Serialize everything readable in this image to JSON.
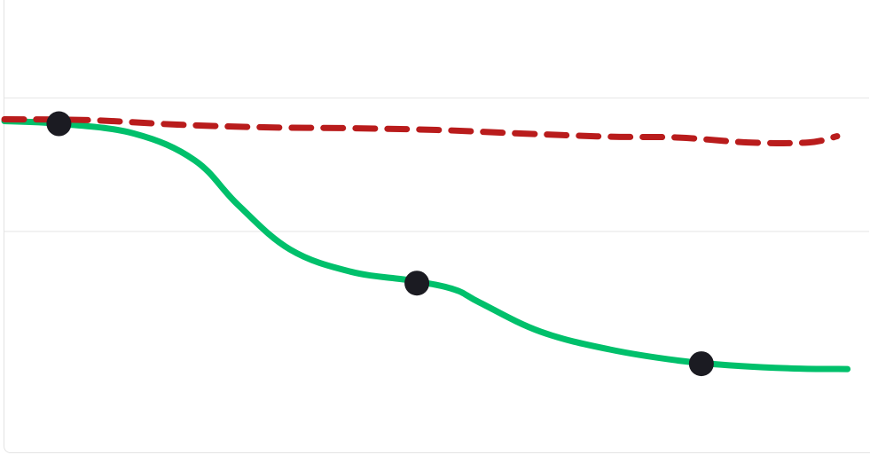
{
  "chart_data": {
    "type": "line",
    "title": "",
    "xlabel": "",
    "ylabel": "",
    "grid": true,
    "legend": "none",
    "xlim": [
      0,
      1
    ],
    "ylim": [
      0,
      1
    ],
    "gridlines_y": [
      0.5,
      0.8
    ],
    "series": [
      {
        "style": "solid",
        "color": "#00c06b",
        "x": [
          0.0,
          0.063,
          0.15,
          0.22,
          0.27,
          0.33,
          0.4,
          0.47,
          0.52,
          0.55,
          0.62,
          0.7,
          0.78,
          0.85,
          0.92,
          0.975
        ],
        "y": [
          0.748,
          0.742,
          0.72,
          0.66,
          0.56,
          0.46,
          0.41,
          0.39,
          0.37,
          0.34,
          0.275,
          0.235,
          0.21,
          0.198,
          0.192,
          0.191
        ],
        "markers": [
          {
            "x": 0.063,
            "y": 0.742
          },
          {
            "x": 0.477,
            "y": 0.384
          },
          {
            "x": 0.806,
            "y": 0.203
          }
        ]
      },
      {
        "style": "dashed",
        "color": "#b91c1c",
        "x": [
          0.0,
          0.1,
          0.2,
          0.3,
          0.4,
          0.5,
          0.6,
          0.7,
          0.78,
          0.86,
          0.93,
          0.963
        ],
        "y": [
          0.752,
          0.75,
          0.74,
          0.734,
          0.732,
          0.728,
          0.72,
          0.713,
          0.711,
          0.7,
          0.7,
          0.714
        ]
      }
    ]
  }
}
